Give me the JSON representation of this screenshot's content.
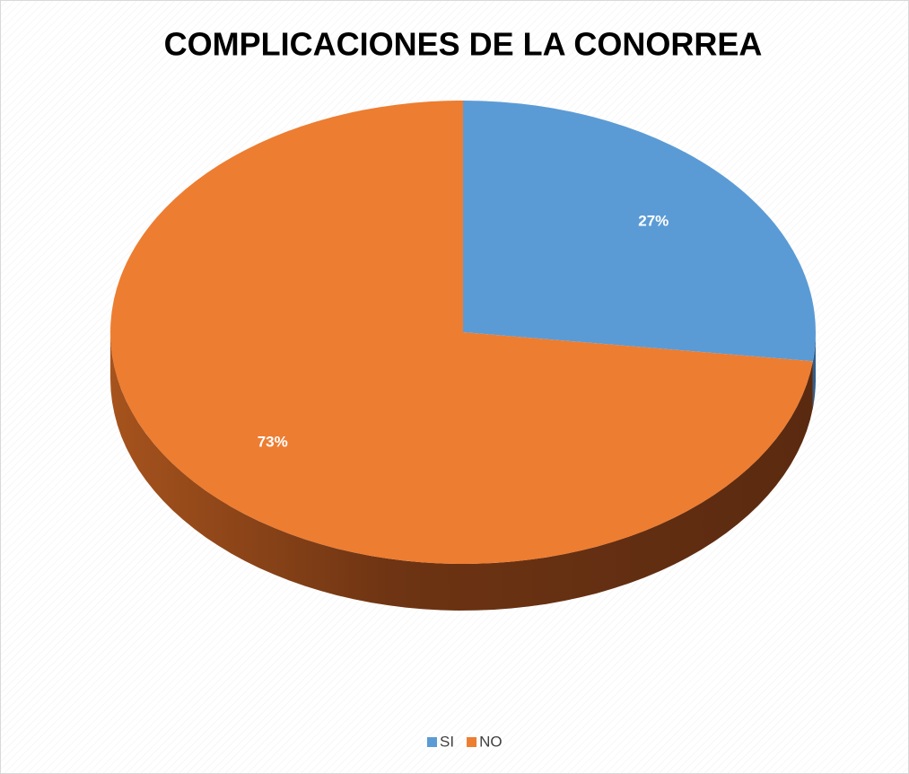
{
  "chart_data": {
    "type": "pie",
    "title": "COMPLICACIONES DE LA CONORREA",
    "categories": [
      "SI",
      "NO"
    ],
    "values": [
      27,
      73
    ],
    "value_labels": [
      "27%",
      "73%"
    ],
    "colors": [
      "#5b9bd5",
      "#ed7d31"
    ],
    "legend": "bottom"
  }
}
